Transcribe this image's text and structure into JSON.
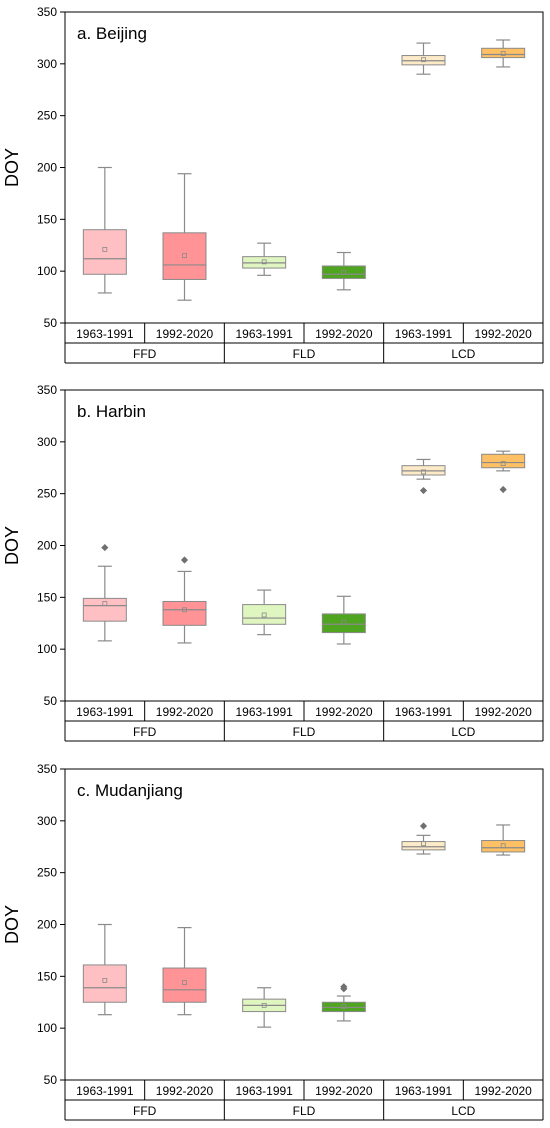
{
  "chart_data": [
    {
      "type": "box",
      "title": "a. Beijing",
      "ylabel": "DOY",
      "ylim": [
        50,
        350
      ],
      "yticks": [
        50,
        100,
        150,
        200,
        250,
        300,
        350
      ],
      "groups": [
        "FFD",
        "FLD",
        "LCD"
      ],
      "periods": [
        "1963-1991",
        "1992-2020"
      ],
      "boxes": [
        {
          "group": "FFD",
          "period": "1963-1991",
          "color": "#ffc0c3",
          "whisker_low": 79,
          "q1": 97,
          "median": 112,
          "q3": 140,
          "whisker_high": 200,
          "mean": 121,
          "outliers": []
        },
        {
          "group": "FFD",
          "period": "1992-2020",
          "color": "#ff9395",
          "whisker_low": 72,
          "q1": 92,
          "median": 106,
          "q3": 137,
          "whisker_high": 194,
          "mean": 115,
          "outliers": []
        },
        {
          "group": "FLD",
          "period": "1963-1991",
          "color": "#dff6c0",
          "whisker_low": 96,
          "q1": 103,
          "median": 108,
          "q3": 114,
          "whisker_high": 127,
          "mean": 109,
          "outliers": []
        },
        {
          "group": "FLD",
          "period": "1992-2020",
          "color": "#4fa520",
          "whisker_low": 82,
          "q1": 93,
          "median": 97,
          "q3": 105,
          "whisker_high": 118,
          "mean": 99,
          "outliers": []
        },
        {
          "group": "LCD",
          "period": "1963-1991",
          "color": "#fdebc8",
          "whisker_low": 290,
          "q1": 299,
          "median": 303,
          "q3": 308,
          "whisker_high": 320,
          "mean": 304,
          "outliers": []
        },
        {
          "group": "LCD",
          "period": "1992-2020",
          "color": "#fdc064",
          "whisker_low": 297,
          "q1": 306,
          "median": 309,
          "q3": 315,
          "whisker_high": 323,
          "mean": 310,
          "outliers": []
        }
      ]
    },
    {
      "type": "box",
      "title": "b. Harbin",
      "ylabel": "DOY",
      "ylim": [
        50,
        350
      ],
      "yticks": [
        50,
        100,
        150,
        200,
        250,
        300,
        350
      ],
      "groups": [
        "FFD",
        "FLD",
        "LCD"
      ],
      "periods": [
        "1963-1991",
        "1992-2020"
      ],
      "boxes": [
        {
          "group": "FFD",
          "period": "1963-1991",
          "color": "#ffc0c3",
          "whisker_low": 108,
          "q1": 127,
          "median": 142,
          "q3": 149,
          "whisker_high": 180,
          "mean": 144,
          "outliers": [
            198
          ]
        },
        {
          "group": "FFD",
          "period": "1992-2020",
          "color": "#ff9395",
          "whisker_low": 106,
          "q1": 123,
          "median": 138,
          "q3": 146,
          "whisker_high": 175,
          "mean": 138,
          "outliers": [
            186
          ]
        },
        {
          "group": "FLD",
          "period": "1963-1991",
          "color": "#dff6c0",
          "whisker_low": 114,
          "q1": 124,
          "median": 130,
          "q3": 143,
          "whisker_high": 157,
          "mean": 133,
          "outliers": []
        },
        {
          "group": "FLD",
          "period": "1992-2020",
          "color": "#4fa520",
          "whisker_low": 105,
          "q1": 116,
          "median": 124,
          "q3": 134,
          "whisker_high": 151,
          "mean": 126,
          "outliers": []
        },
        {
          "group": "LCD",
          "period": "1963-1991",
          "color": "#fdebc8",
          "whisker_low": 264,
          "q1": 268,
          "median": 272,
          "q3": 277,
          "whisker_high": 283,
          "mean": 271,
          "outliers": [
            253
          ]
        },
        {
          "group": "LCD",
          "period": "1992-2020",
          "color": "#fdc064",
          "whisker_low": 272,
          "q1": 275,
          "median": 280,
          "q3": 288,
          "whisker_high": 291,
          "mean": 279,
          "outliers": [
            254
          ]
        }
      ]
    },
    {
      "type": "box",
      "title": "c. Mudanjiang",
      "ylabel": "DOY",
      "ylim": [
        50,
        350
      ],
      "yticks": [
        50,
        100,
        150,
        200,
        250,
        300,
        350
      ],
      "groups": [
        "FFD",
        "FLD",
        "LCD"
      ],
      "periods": [
        "1963-1991",
        "1992-2020"
      ],
      "boxes": [
        {
          "group": "FFD",
          "period": "1963-1991",
          "color": "#ffc0c3",
          "whisker_low": 113,
          "q1": 125,
          "median": 139,
          "q3": 161,
          "whisker_high": 200,
          "mean": 146,
          "outliers": []
        },
        {
          "group": "FFD",
          "period": "1992-2020",
          "color": "#ff9395",
          "whisker_low": 113,
          "q1": 125,
          "median": 137,
          "q3": 158,
          "whisker_high": 197,
          "mean": 144,
          "outliers": []
        },
        {
          "group": "FLD",
          "period": "1963-1991",
          "color": "#dff6c0",
          "whisker_low": 101,
          "q1": 116,
          "median": 122,
          "q3": 128,
          "whisker_high": 139,
          "mean": 122,
          "outliers": []
        },
        {
          "group": "FLD",
          "period": "1992-2020",
          "color": "#4fa520",
          "whisker_low": 107,
          "q1": 116,
          "median": 120,
          "q3": 125,
          "whisker_high": 131,
          "mean": 121,
          "outliers": [
            138,
            140
          ]
        },
        {
          "group": "LCD",
          "period": "1963-1991",
          "color": "#fdebc8",
          "whisker_low": 268,
          "q1": 272,
          "median": 275,
          "q3": 280,
          "whisker_high": 286,
          "mean": 278,
          "outliers": [
            295
          ]
        },
        {
          "group": "LCD",
          "period": "1992-2020",
          "color": "#fdc064",
          "whisker_low": 267,
          "q1": 270,
          "median": 274,
          "q3": 281,
          "whisker_high": 296,
          "mean": 276,
          "outliers": []
        }
      ]
    }
  ]
}
